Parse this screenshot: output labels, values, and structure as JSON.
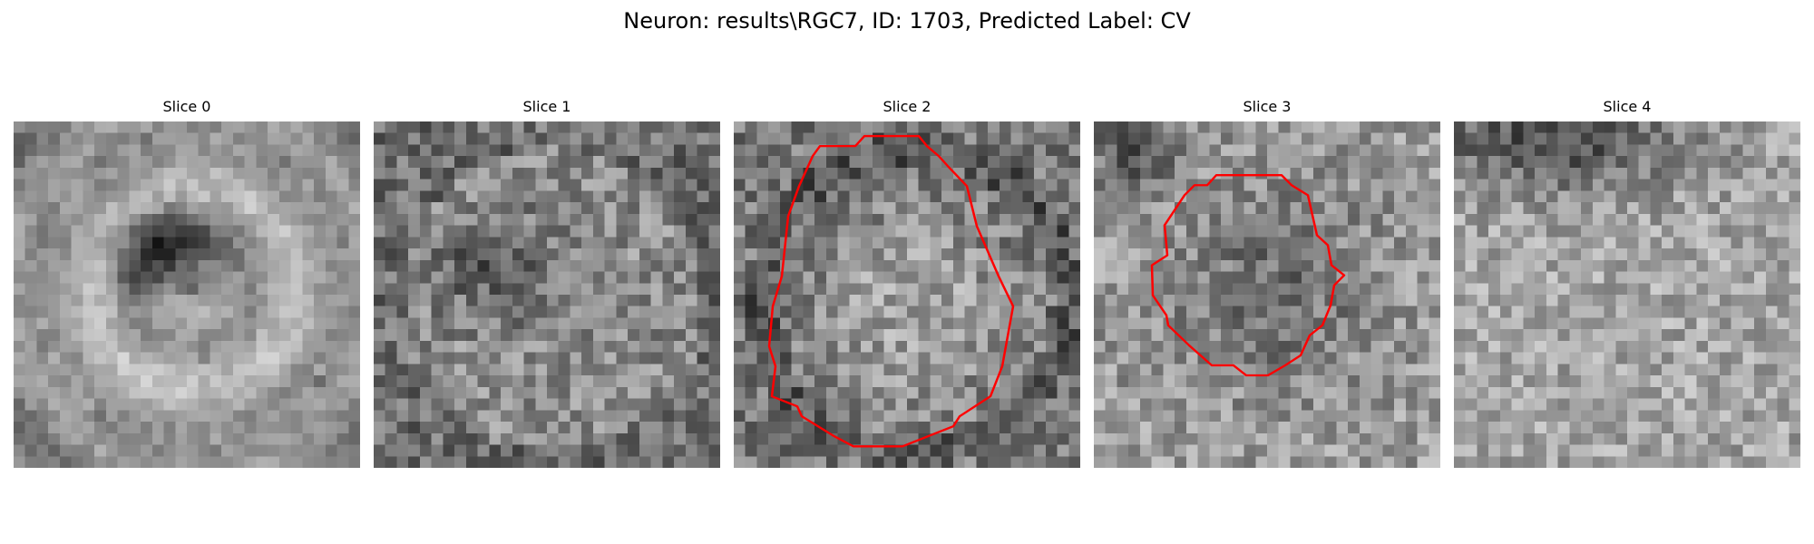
{
  "figure": {
    "title": "Neuron: results\\RGC7, ID: 1703, Predicted Label: CV",
    "contour_color": "#ff0000"
  },
  "slices": [
    {
      "title": "Slice 0",
      "has_contour": false
    },
    {
      "title": "Slice 1",
      "has_contour": false
    },
    {
      "title": "Slice 2",
      "has_contour": true
    },
    {
      "title": "Slice 3",
      "has_contour": true
    },
    {
      "title": "Slice 4",
      "has_contour": false
    }
  ]
}
